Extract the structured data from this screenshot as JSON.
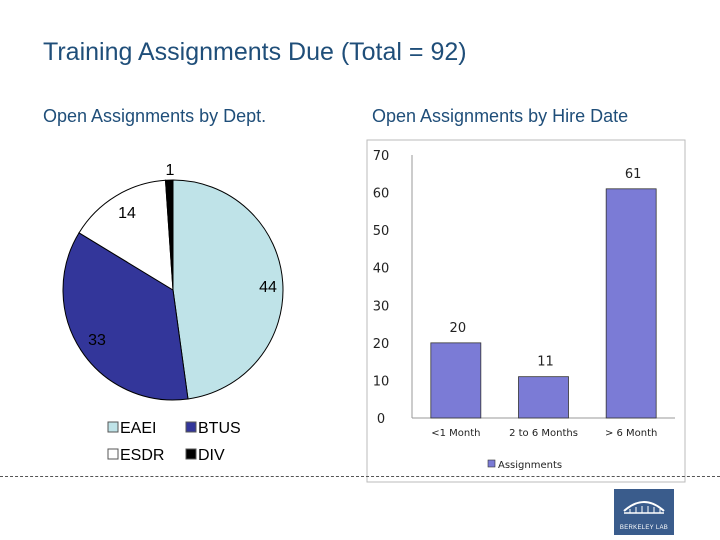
{
  "title": "Training Assignments Due (Total = 92)",
  "chart_data": [
    {
      "type": "pie",
      "title": "Open Assignments by Dept.",
      "slices": [
        {
          "name": "EAEI",
          "value": 44,
          "color": "#bfe3e8"
        },
        {
          "name": "BTUS",
          "value": 33,
          "color": "#33369a"
        },
        {
          "name": "ESDR",
          "value": 14,
          "color": "#ffffff"
        },
        {
          "name": "DIV",
          "value": 1,
          "color": "#000000"
        }
      ],
      "legend_placement": "bottom"
    },
    {
      "type": "bar",
      "title": "Open Assignments by Hire Date",
      "categories": [
        "<1 Month",
        "2 to 6 Months",
        "> 6 Month"
      ],
      "series": [
        {
          "name": "Assignments",
          "values": [
            20,
            11,
            61
          ],
          "color": "#7b7bd6"
        }
      ],
      "ylim": [
        0,
        70
      ],
      "yticks": [
        0,
        10,
        20,
        30,
        40,
        50,
        60,
        70
      ],
      "grid": false,
      "legend_placement": "bottom"
    }
  ],
  "logo": {
    "text": "BERKELEY LAB"
  }
}
